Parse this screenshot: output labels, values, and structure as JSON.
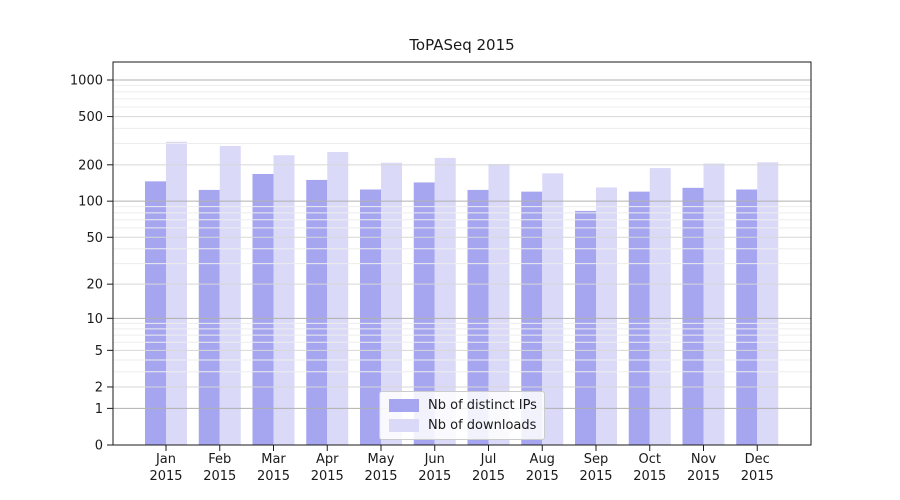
{
  "chart_data": {
    "type": "bar",
    "title": "ToPASeq 2015",
    "xlabel": "",
    "ylabel": "",
    "yscale": "log1p",
    "ylim": [
      0,
      1400
    ],
    "yticks": [
      0,
      1,
      2,
      5,
      10,
      20,
      50,
      100,
      200,
      500,
      1000
    ],
    "grid": true,
    "legend_position": "lower-center-inside",
    "categories": [
      "Jan 2015",
      "Feb 2015",
      "Mar 2015",
      "Apr 2015",
      "May 2015",
      "Jun 2015",
      "Jul 2015",
      "Aug 2015",
      "Sep 2015",
      "Oct 2015",
      "Nov 2015",
      "Dec 2015"
    ],
    "series": [
      {
        "name": "Nb of distinct IPs",
        "color": "#a6a6f0",
        "values": [
          146,
          124,
          168,
          150,
          125,
          143,
          124,
          120,
          83,
          120,
          129,
          125
        ]
      },
      {
        "name": "Nb of downloads",
        "color": "#dadaf8",
        "values": [
          310,
          286,
          240,
          255,
          208,
          228,
          203,
          170,
          130,
          188,
          205,
          210
        ]
      }
    ]
  }
}
